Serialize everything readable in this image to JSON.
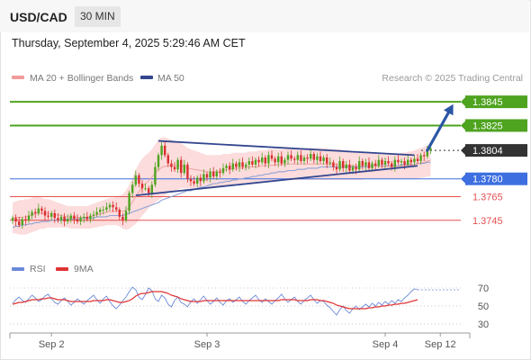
{
  "header": {
    "symbol": "USD/CAD",
    "timeframe": "30 MIN",
    "timestamp": "Thursday, September 4, 2025 5:29:46 AM CET"
  },
  "legend": {
    "bollinger_label": "MA 20 + Bollinger Bands",
    "ma50_label": "MA 50",
    "credit": "Research © 2025 Trading Central",
    "rsi_label": "RSI",
    "rsi_ma_label": "9MA"
  },
  "colors": {
    "green": "#4ea31f",
    "blue": "#3d6fe0",
    "red": "#e35151",
    "dark": "#333333",
    "trend": "#33468f",
    "arrow": "#2b56a5",
    "candle_up": "#4ea31f",
    "candle_down": "#d92f2f",
    "bollinger_fill": "#fbd6d6",
    "rsi_line": "#6a8ad8",
    "rsi_ma": "#e03333"
  },
  "chart_data": {
    "type": "candlestick",
    "symbol": "USD/CAD",
    "timeframe": "30 MIN",
    "x_ticks": [
      {
        "label": "Sep 2",
        "t": 12
      },
      {
        "label": "Sep 3",
        "t": 60
      },
      {
        "label": "Sep 4",
        "t": 115
      },
      {
        "label": "Sep 12",
        "t": 132
      }
    ],
    "ylim": [
      1.3716,
      1.3858
    ],
    "levels": [
      {
        "value": 1.3845,
        "label": "1.3845",
        "color": "green",
        "style": "solid",
        "tag": "filled"
      },
      {
        "value": 1.3825,
        "label": "1.3825",
        "color": "green",
        "style": "solid",
        "tag": "filled"
      },
      {
        "value": 1.3804,
        "label": "1.3804",
        "color": "dark",
        "style": "dotted",
        "tag": "filled"
      },
      {
        "value": 1.378,
        "label": "1.3780",
        "color": "blue",
        "style": "solid",
        "tag": "filled"
      },
      {
        "value": 1.3765,
        "label": "1.3765",
        "color": "red",
        "style": "solid",
        "tag": "text"
      },
      {
        "value": 1.3745,
        "label": "1.3745",
        "color": "red",
        "style": "solid",
        "tag": "text"
      }
    ],
    "close": [
      1.3747,
      1.3744,
      1.3741,
      1.3746,
      1.3745,
      1.3749,
      1.3752,
      1.3751,
      1.3755,
      1.3753,
      1.3749,
      1.3748,
      1.3751,
      1.3747,
      1.3745,
      1.3748,
      1.3744,
      1.3746,
      1.3749,
      1.3746,
      1.3744,
      1.3747,
      1.3748,
      1.3746,
      1.3749,
      1.375,
      1.3752,
      1.3754,
      1.3754,
      1.3756,
      1.3758,
      1.3756,
      1.3754,
      1.3748,
      1.3745,
      1.3753,
      1.3768,
      1.3775,
      1.3783,
      1.3776,
      1.3772,
      1.3772,
      1.3768,
      1.3775,
      1.379,
      1.38,
      1.3808,
      1.38,
      1.3793,
      1.379,
      1.3788,
      1.3796,
      1.3785,
      1.3792,
      1.378,
      1.3778,
      1.3776,
      1.3781,
      1.3778,
      1.3784,
      1.3781,
      1.3786,
      1.3782,
      1.3786,
      1.3785,
      1.3789,
      1.3791,
      1.3788,
      1.3793,
      1.379,
      1.3794,
      1.379,
      1.3792,
      1.3795,
      1.3792,
      1.3796,
      1.3794,
      1.3798,
      1.3793,
      1.38,
      1.3797,
      1.3794,
      1.3799,
      1.3793,
      1.3796,
      1.38,
      1.3797,
      1.3796,
      1.38,
      1.3795,
      1.3798,
      1.3797,
      1.3801,
      1.3796,
      1.3799,
      1.3795,
      1.3798,
      1.3793,
      1.3794,
      1.379,
      1.3788,
      1.3795,
      1.3789,
      1.3792,
      1.3787,
      1.379,
      1.3788,
      1.3795,
      1.3791,
      1.3794,
      1.3789,
      1.3793,
      1.3791,
      1.3796,
      1.3792,
      1.3795,
      1.3793,
      1.379,
      1.3796,
      1.3794,
      1.3795,
      1.3792,
      1.3796,
      1.3794,
      1.3797,
      1.3795,
      1.38,
      1.3799,
      1.3804,
      1.3806
    ],
    "bb_upper": [
      1.376,
      1.3761,
      1.3762,
      1.3762,
      1.3763,
      1.3763,
      1.3764,
      1.3765,
      1.3765,
      1.3764,
      1.3763,
      1.3763,
      1.3762,
      1.3761,
      1.376,
      1.3759,
      1.3758,
      1.3757,
      1.3757,
      1.3757,
      1.3757,
      1.3757,
      1.3757,
      1.3757,
      1.3758,
      1.3759,
      1.376,
      1.3761,
      1.3762,
      1.3763,
      1.3764,
      1.3764,
      1.3765,
      1.3766,
      1.3767,
      1.377,
      1.3775,
      1.3781,
      1.3788,
      1.3793,
      1.3797,
      1.38,
      1.3802,
      1.3805,
      1.3809,
      1.3813,
      1.3815,
      1.3815,
      1.3814,
      1.3813,
      1.3812,
      1.3811,
      1.381,
      1.3808,
      1.3806,
      1.3805,
      1.3804,
      1.3803,
      1.3802,
      1.3801,
      1.38,
      1.38,
      1.38,
      1.38,
      1.38,
      1.3801,
      1.3801,
      1.3801,
      1.3802,
      1.3802,
      1.3802,
      1.3802,
      1.3802,
      1.3803,
      1.3803,
      1.3803,
      1.3804,
      1.3804,
      1.3804,
      1.3805,
      1.3805,
      1.3805,
      1.3805,
      1.3805,
      1.3805,
      1.3806,
      1.3806,
      1.3806,
      1.3806,
      1.3806,
      1.3806,
      1.3806,
      1.3806,
      1.3806,
      1.3806,
      1.3806,
      1.3806,
      1.3806,
      1.3805,
      1.3805,
      1.3805,
      1.3805,
      1.3804,
      1.3804,
      1.3804,
      1.3803,
      1.3803,
      1.3803,
      1.3803,
      1.3802,
      1.3802,
      1.3802,
      1.3802,
      1.3801,
      1.3801,
      1.3801,
      1.3801,
      1.3801,
      1.3801,
      1.3801,
      1.3802,
      1.3802,
      1.3803,
      1.3803,
      1.3804,
      1.3805,
      1.3806,
      1.3807,
      1.3808,
      1.3809
    ],
    "bb_lower": [
      1.3734,
      1.3734,
      1.3733,
      1.3733,
      1.3733,
      1.3734,
      1.3735,
      1.3736,
      1.3737,
      1.3738,
      1.3738,
      1.3739,
      1.3739,
      1.3739,
      1.3739,
      1.3739,
      1.3739,
      1.3739,
      1.3738,
      1.3738,
      1.3738,
      1.3738,
      1.3738,
      1.3738,
      1.3738,
      1.3739,
      1.3739,
      1.374,
      1.374,
      1.3741,
      1.3741,
      1.3741,
      1.3741,
      1.374,
      1.3738,
      1.3737,
      1.3738,
      1.374,
      1.3742,
      1.3745,
      1.3749,
      1.3752,
      1.3755,
      1.3758,
      1.376,
      1.3762,
      1.3764,
      1.3766,
      1.3768,
      1.3769,
      1.377,
      1.3771,
      1.3772,
      1.3772,
      1.3772,
      1.3772,
      1.3772,
      1.3772,
      1.3772,
      1.3772,
      1.3772,
      1.3772,
      1.3772,
      1.3773,
      1.3773,
      1.3774,
      1.3774,
      1.3775,
      1.3775,
      1.3776,
      1.3776,
      1.3776,
      1.3777,
      1.3777,
      1.3777,
      1.3777,
      1.3777,
      1.3778,
      1.3778,
      1.3778,
      1.3778,
      1.3778,
      1.3779,
      1.3779,
      1.3779,
      1.3779,
      1.3779,
      1.3779,
      1.3779,
      1.3779,
      1.3779,
      1.3779,
      1.3779,
      1.3779,
      1.3779,
      1.3779,
      1.3779,
      1.3779,
      1.3779,
      1.3779,
      1.3779,
      1.3779,
      1.3779,
      1.3779,
      1.3779,
      1.3779,
      1.3779,
      1.3779,
      1.3779,
      1.378,
      1.378,
      1.378,
      1.378,
      1.378,
      1.378,
      1.378,
      1.378,
      1.378,
      1.378,
      1.378,
      1.378,
      1.378,
      1.378,
      1.378,
      1.378,
      1.378,
      1.3781,
      1.3781,
      1.3782,
      1.3782
    ],
    "ma50": [
      1.3739,
      1.374,
      1.374,
      1.3741,
      1.3741,
      1.3742,
      1.3742,
      1.3743,
      1.3743,
      1.3744,
      1.3744,
      1.3744,
      1.3745,
      1.3745,
      1.3745,
      1.3745,
      1.3746,
      1.3746,
      1.3746,
      1.3746,
      1.3746,
      1.3747,
      1.3747,
      1.3747,
      1.3747,
      1.3747,
      1.3748,
      1.3748,
      1.3748,
      1.3748,
      1.3749,
      1.3749,
      1.3749,
      1.3749,
      1.3749,
      1.375,
      1.3751,
      1.3752,
      1.3753,
      1.3754,
      1.3755,
      1.3756,
      1.3757,
      1.3758,
      1.3759,
      1.376,
      1.3762,
      1.3763,
      1.3764,
      1.3765,
      1.3766,
      1.3767,
      1.3768,
      1.3769,
      1.377,
      1.377,
      1.3771,
      1.3772,
      1.3773,
      1.3773,
      1.3774,
      1.3775,
      1.3776,
      1.3776,
      1.3777,
      1.3777,
      1.3778,
      1.3778,
      1.3779,
      1.3779,
      1.378,
      1.378,
      1.3781,
      1.3781,
      1.3782,
      1.3782,
      1.3783,
      1.3783,
      1.3784,
      1.3784,
      1.3785,
      1.3785,
      1.3786,
      1.3786,
      1.3786,
      1.3787,
      1.3787,
      1.3787,
      1.3788,
      1.3788,
      1.3788,
      1.3789,
      1.3789,
      1.3789,
      1.3789,
      1.379,
      1.379,
      1.379,
      1.379,
      1.379,
      1.379,
      1.379,
      1.379,
      1.379,
      1.379,
      1.379,
      1.379,
      1.379,
      1.379,
      1.379,
      1.379,
      1.3791,
      1.3791,
      1.3791,
      1.3791,
      1.3791,
      1.3791,
      1.3791,
      1.3791,
      1.3791,
      1.3792,
      1.3792,
      1.3792,
      1.3792,
      1.3792,
      1.3793,
      1.3793,
      1.3793,
      1.3794,
      1.3794
    ],
    "trendlines": [
      {
        "name": "upper",
        "from": {
          "t": 45,
          "v": 1.3812
        },
        "to": {
          "t": 124,
          "v": 1.38
        }
      },
      {
        "name": "lower",
        "from": {
          "t": 38,
          "v": 1.3766
        },
        "to": {
          "t": 125,
          "v": 1.3791
        }
      }
    ],
    "forecast_arrow": {
      "from": {
        "t": 128,
        "v": 1.3804
      },
      "to": {
        "t": 136,
        "v": 1.3843
      }
    },
    "rsi": {
      "ylim": [
        24,
        78
      ],
      "ticks": [
        70,
        50,
        30
      ],
      "rsi": [
        53,
        57,
        60,
        56,
        54,
        58,
        62,
        59,
        55,
        57,
        61,
        63,
        58,
        54,
        52,
        56,
        59,
        55,
        51,
        54,
        58,
        55,
        52,
        56,
        59,
        62,
        57,
        53,
        58,
        61,
        55,
        50,
        47,
        51,
        56,
        60,
        66,
        71,
        68,
        60,
        57,
        63,
        70,
        67,
        58,
        55,
        62,
        59,
        52,
        49,
        56,
        60,
        54,
        52,
        49,
        55,
        58,
        53,
        57,
        61,
        56,
        52,
        55,
        59,
        54,
        51,
        56,
        58,
        54,
        57,
        60,
        55,
        52,
        56,
        59,
        62,
        57,
        54,
        58,
        55,
        52,
        56,
        59,
        63,
        58,
        54,
        57,
        60,
        55,
        52,
        56,
        59,
        62,
        57,
        53,
        56,
        55,
        51,
        48,
        44,
        40,
        46,
        50,
        45,
        42,
        47,
        50,
        46,
        49,
        52,
        49,
        53,
        50,
        54,
        51,
        55,
        52,
        56,
        53,
        57,
        55,
        59,
        62,
        66,
        69,
        68
      ],
      "ma9": [
        52,
        53,
        54,
        54,
        55,
        56,
        57,
        57,
        57,
        58,
        58,
        59,
        59,
        58,
        57,
        57,
        57,
        56,
        55,
        55,
        55,
        55,
        55,
        55,
        55,
        56,
        56,
        56,
        56,
        57,
        57,
        56,
        55,
        54,
        54,
        55,
        56,
        58,
        61,
        63,
        64,
        64,
        65,
        66,
        66,
        66,
        66,
        65,
        64,
        62,
        61,
        60,
        58,
        57,
        56,
        55,
        55,
        55,
        55,
        56,
        56,
        56,
        56,
        56,
        56,
        56,
        56,
        56,
        56,
        56,
        56,
        56,
        56,
        56,
        56,
        56,
        56,
        56,
        56,
        56,
        56,
        56,
        56,
        57,
        57,
        57,
        57,
        57,
        56,
        56,
        56,
        56,
        57,
        57,
        57,
        56,
        56,
        55,
        54,
        53,
        51,
        50,
        49,
        48,
        47,
        47,
        47,
        47,
        47,
        47,
        48,
        48,
        49,
        49,
        50,
        50,
        51,
        51,
        52,
        52,
        53,
        53,
        54,
        55,
        56,
        57
      ]
    }
  }
}
